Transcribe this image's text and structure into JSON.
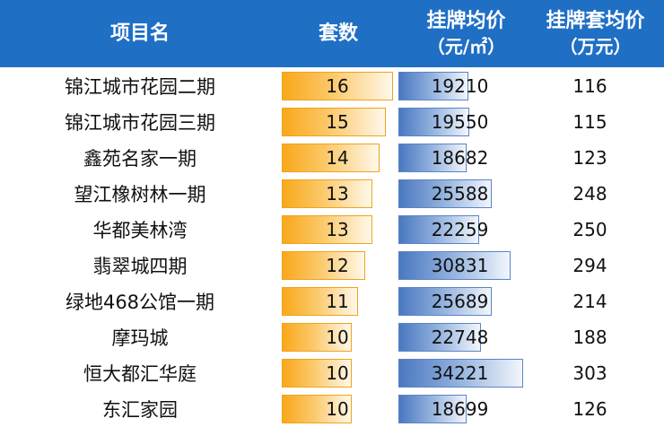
{
  "chart_data": {
    "type": "table",
    "columns": [
      "项目名",
      "套数",
      "挂牌均价",
      "挂牌套均价"
    ],
    "column_units": [
      "",
      "",
      "（元/㎡）",
      "（万元）"
    ],
    "rows": [
      {
        "name": "锦江城市花园二期",
        "sets": 16,
        "avg_price": 19210,
        "avg_total": 116
      },
      {
        "name": "锦江城市花园三期",
        "sets": 15,
        "avg_price": 19550,
        "avg_total": 115
      },
      {
        "name": "鑫苑名家一期",
        "sets": 14,
        "avg_price": 18682,
        "avg_total": 123
      },
      {
        "name": "望江橡树林一期",
        "sets": 13,
        "avg_price": 25588,
        "avg_total": 248
      },
      {
        "name": "华都美林湾",
        "sets": 13,
        "avg_price": 22259,
        "avg_total": 250
      },
      {
        "name": "翡翠城四期",
        "sets": 12,
        "avg_price": 30831,
        "avg_total": 294
      },
      {
        "name": "绿地468公馆一期",
        "sets": 11,
        "avg_price": 25689,
        "avg_total": 214
      },
      {
        "name": "摩玛城",
        "sets": 10,
        "avg_price": 22748,
        "avg_total": 188
      },
      {
        "name": "恒大都汇华庭",
        "sets": 10,
        "avg_price": 34221,
        "avg_total": 303
      },
      {
        "name": "东汇家园",
        "sets": 10,
        "avg_price": 18699,
        "avg_total": 126
      }
    ],
    "databar_ranges": {
      "sets": [
        0,
        16
      ],
      "avg_price": [
        0,
        34221
      ]
    },
    "colors": {
      "header_bg": "#1f6fc5",
      "sets_bar": "#f9a81a",
      "price_bar": "#4a78c0"
    }
  }
}
